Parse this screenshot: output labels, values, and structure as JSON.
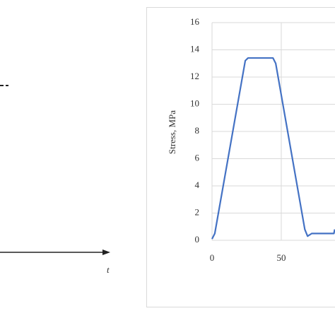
{
  "chart_data": {
    "type": "line",
    "y_label": "Stress, MPa",
    "x": [
      0,
      2,
      24,
      26,
      44,
      46,
      67,
      69,
      72,
      88,
      88.6
    ],
    "series": [
      {
        "name": "Stress",
        "color": "#4472c4",
        "values": [
          0.1,
          0.5,
          13.2,
          13.4,
          13.4,
          13.0,
          0.8,
          0.3,
          0.5,
          0.5,
          0.8
        ]
      }
    ],
    "xlim": [
      0,
      88.8
    ],
    "xticks": [
      0,
      50
    ],
    "ylim": [
      0,
      16
    ],
    "yticks": [
      0,
      2,
      4,
      6,
      8,
      10,
      12,
      14,
      16
    ],
    "grid": true
  },
  "left_panel": {
    "axis_label": "t"
  }
}
